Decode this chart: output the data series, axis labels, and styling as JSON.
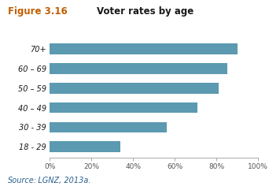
{
  "title_fig": "Figure 3.16",
  "title_main": "Voter rates by age",
  "categories": [
    "18 - 29",
    "30 - 39",
    "40 – 49",
    "50 – 59",
    "60 – 69",
    "70+"
  ],
  "values": [
    0.34,
    0.56,
    0.71,
    0.81,
    0.85,
    0.9
  ],
  "bar_color": "#5b9ab0",
  "source_label": "Source:",
  "source_text": "   LGNZ, 2013a.",
  "xlim": [
    0,
    1.0
  ],
  "xticks": [
    0,
    0.2,
    0.4,
    0.6,
    0.8,
    1.0
  ],
  "xticklabels": [
    "0%",
    "20%",
    "40%",
    "60%",
    "80%",
    "100%"
  ],
  "background_color": "#ffffff",
  "title_fig_color": "#c06000",
  "title_main_color": "#1a1a1a",
  "source_label_color": "#2a6090",
  "source_text_color": "#2a6090",
  "ytick_color": "#1a1a1a",
  "xtick_color": "#555555"
}
